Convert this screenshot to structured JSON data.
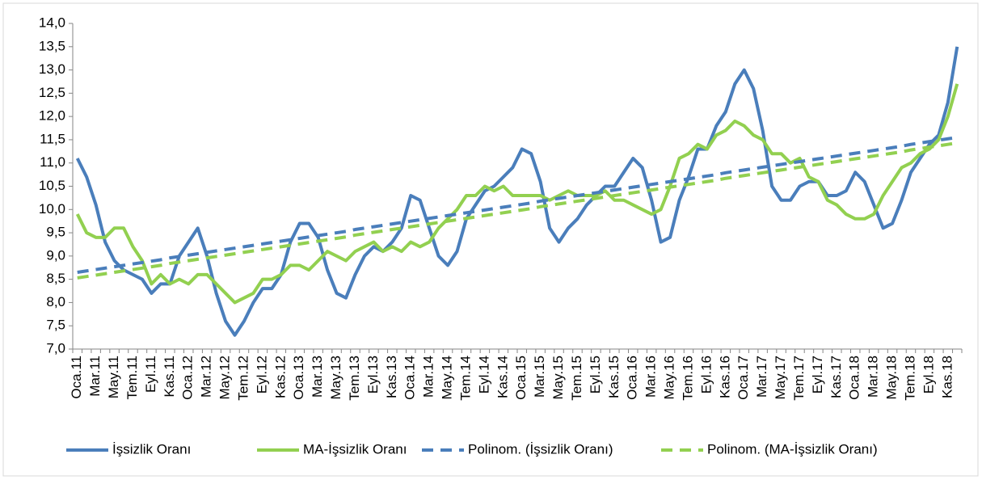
{
  "chart_data": {
    "type": "line",
    "categories": [
      "Oca.11",
      null,
      "Mar.11",
      null,
      "May.11",
      null,
      "Tem.11",
      null,
      "Eyl.11",
      null,
      "Kas.11",
      null,
      "Oca.12",
      null,
      "Mar.12",
      null,
      "May.12",
      null,
      "Tem.12",
      null,
      "Eyl.12",
      null,
      "Kas.12",
      null,
      "Oca.13",
      null,
      "Mar.13",
      null,
      "May.13",
      null,
      "Tem.13",
      null,
      "Eyl.13",
      null,
      "Kas.13",
      null,
      "Oca.14",
      null,
      "Mar.14",
      null,
      "May.14",
      null,
      "Tem.14",
      null,
      "Eyl.14",
      null,
      "Kas.14",
      null,
      "Oca.15",
      null,
      "Mar.15",
      null,
      "May.15",
      null,
      "Tem.15",
      null,
      "Eyl.15",
      null,
      "Kas.15",
      null,
      "Oca.16",
      null,
      "Mar.16",
      null,
      "May.16",
      null,
      "Tem.16",
      null,
      "Eyl.16",
      null,
      "Kas.16",
      null,
      "Oca.17",
      null,
      "Mar.17",
      null,
      "May.17",
      null,
      "Tem.17",
      null,
      "Eyl.17",
      null,
      "Kas.17",
      null,
      "Oca.18",
      null,
      "Mar.18",
      null,
      "May.18",
      null,
      "Tem.18",
      null,
      "Eyl.18",
      null,
      "Kas.18",
      null
    ],
    "series": [
      {
        "name": "İşsizlik Oranı",
        "color": "#4a7ebb",
        "dash": false,
        "values": [
          11.1,
          10.7,
          10.1,
          9.3,
          8.9,
          8.7,
          8.6,
          8.5,
          8.2,
          8.4,
          8.4,
          9.0,
          9.3,
          9.6,
          9.0,
          8.2,
          7.6,
          7.3,
          7.6,
          8.0,
          8.3,
          8.3,
          8.6,
          9.3,
          9.7,
          9.7,
          9.4,
          8.7,
          8.2,
          8.1,
          8.6,
          9.0,
          9.2,
          9.1,
          9.3,
          9.6,
          10.3,
          10.2,
          9.6,
          9.0,
          8.8,
          9.1,
          9.8,
          10.1,
          10.4,
          10.5,
          10.7,
          10.9,
          11.3,
          11.2,
          10.6,
          9.6,
          9.3,
          9.6,
          9.8,
          10.1,
          10.3,
          10.5,
          10.5,
          10.8,
          11.1,
          10.9,
          10.2,
          9.3,
          9.4,
          10.2,
          10.7,
          11.3,
          11.3,
          11.8,
          12.1,
          12.7,
          13.0,
          12.6,
          11.7,
          10.5,
          10.2,
          10.2,
          10.5,
          10.6,
          10.6,
          10.3,
          10.3,
          10.4,
          10.8,
          10.6,
          10.1,
          9.6,
          9.7,
          10.2,
          10.8,
          11.1,
          11.4,
          11.6,
          12.3,
          13.5
        ]
      },
      {
        "name": "MA-İşsizlik Oranı",
        "color": "#92d050",
        "dash": false,
        "values": [
          9.9,
          9.5,
          9.4,
          9.4,
          9.6,
          9.6,
          9.2,
          8.9,
          8.4,
          8.6,
          8.4,
          8.5,
          8.4,
          8.6,
          8.6,
          8.4,
          8.2,
          8.0,
          8.1,
          8.2,
          8.5,
          8.5,
          8.6,
          8.8,
          8.8,
          8.7,
          8.9,
          9.1,
          9.0,
          8.9,
          9.1,
          9.2,
          9.3,
          9.1,
          9.2,
          9.1,
          9.3,
          9.2,
          9.3,
          9.6,
          9.8,
          10.0,
          10.3,
          10.3,
          10.5,
          10.4,
          10.5,
          10.3,
          10.3,
          10.3,
          10.3,
          10.2,
          10.3,
          10.4,
          10.3,
          10.3,
          10.3,
          10.4,
          10.2,
          10.2,
          10.1,
          10.0,
          9.9,
          10.0,
          10.5,
          11.1,
          11.2,
          11.4,
          11.3,
          11.6,
          11.7,
          11.9,
          11.8,
          11.6,
          11.5,
          11.2,
          11.2,
          11.0,
          11.1,
          10.7,
          10.6,
          10.2,
          10.1,
          9.9,
          9.8,
          9.8,
          9.9,
          10.3,
          10.6,
          10.9,
          11.0,
          11.2,
          11.3,
          11.5,
          12.0,
          12.7
        ]
      },
      {
        "name": "Polinom. (İşsizlik Oranı)",
        "color": "#4a7ebb",
        "dash": true,
        "values": [
          8.65,
          8.68,
          8.71,
          8.74,
          8.77,
          8.8,
          8.83,
          8.86,
          8.89,
          8.92,
          8.96,
          8.99,
          9.02,
          9.05,
          9.08,
          9.11,
          9.14,
          9.17,
          9.2,
          9.23,
          9.26,
          9.29,
          9.32,
          9.35,
          9.38,
          9.41,
          9.44,
          9.47,
          9.5,
          9.53,
          9.57,
          9.6,
          9.63,
          9.66,
          9.69,
          9.72,
          9.75,
          9.78,
          9.81,
          9.84,
          9.87,
          9.9,
          9.93,
          9.96,
          9.99,
          10.02,
          10.05,
          10.08,
          10.11,
          10.14,
          10.18,
          10.21,
          10.24,
          10.27,
          10.3,
          10.33,
          10.36,
          10.39,
          10.42,
          10.45,
          10.48,
          10.51,
          10.54,
          10.57,
          10.6,
          10.63,
          10.66,
          10.69,
          10.72,
          10.75,
          10.79,
          10.82,
          10.85,
          10.88,
          10.91,
          10.94,
          10.97,
          11.0,
          11.03,
          11.06,
          11.09,
          11.12,
          11.15,
          11.18,
          11.21,
          11.24,
          11.27,
          11.3,
          11.33,
          11.36,
          11.4,
          11.43,
          11.46,
          11.49,
          11.52,
          11.55
        ]
      },
      {
        "name": "Polinom. (MA-İşsizlik Oranı)",
        "color": "#92d050",
        "dash": true,
        "values": [
          8.53,
          8.56,
          8.59,
          8.62,
          8.65,
          8.68,
          8.71,
          8.74,
          8.77,
          8.8,
          8.84,
          8.87,
          8.9,
          8.93,
          8.96,
          8.99,
          9.02,
          9.05,
          9.08,
          9.11,
          9.14,
          9.17,
          9.2,
          9.23,
          9.26,
          9.29,
          9.32,
          9.35,
          9.38,
          9.41,
          9.45,
          9.48,
          9.51,
          9.54,
          9.57,
          9.6,
          9.63,
          9.66,
          9.69,
          9.72,
          9.75,
          9.78,
          9.81,
          9.84,
          9.87,
          9.9,
          9.93,
          9.96,
          9.99,
          10.02,
          10.06,
          10.09,
          10.12,
          10.15,
          10.18,
          10.21,
          10.24,
          10.27,
          10.3,
          10.33,
          10.36,
          10.39,
          10.42,
          10.45,
          10.48,
          10.51,
          10.54,
          10.57,
          10.6,
          10.63,
          10.67,
          10.7,
          10.73,
          10.76,
          10.79,
          10.82,
          10.85,
          10.88,
          10.91,
          10.94,
          10.97,
          11.0,
          11.03,
          11.06,
          11.09,
          11.12,
          11.15,
          11.18,
          11.21,
          11.24,
          11.28,
          11.31,
          11.34,
          11.37,
          11.4,
          11.43
        ]
      }
    ],
    "ylim": [
      7.0,
      14.0
    ],
    "yticks": [
      {
        "value": 7.0,
        "label": "7,0"
      },
      {
        "value": 7.5,
        "label": "7,5"
      },
      {
        "value": 8.0,
        "label": "8,0"
      },
      {
        "value": 8.5,
        "label": "8,5"
      },
      {
        "value": 9.0,
        "label": "9,0"
      },
      {
        "value": 9.5,
        "label": "9,5"
      },
      {
        "value": 10.0,
        "label": "10,0"
      },
      {
        "value": 10.5,
        "label": "10,5"
      },
      {
        "value": 11.0,
        "label": "11,0"
      },
      {
        "value": 11.5,
        "label": "11,5"
      },
      {
        "value": 12.0,
        "label": "12,0"
      },
      {
        "value": 12.5,
        "label": "12,5"
      },
      {
        "value": 13.0,
        "label": "13,0"
      },
      {
        "value": 13.5,
        "label": "13,5"
      },
      {
        "value": 14.0,
        "label": "14,0"
      }
    ],
    "grid": false,
    "legend": "bottom"
  }
}
